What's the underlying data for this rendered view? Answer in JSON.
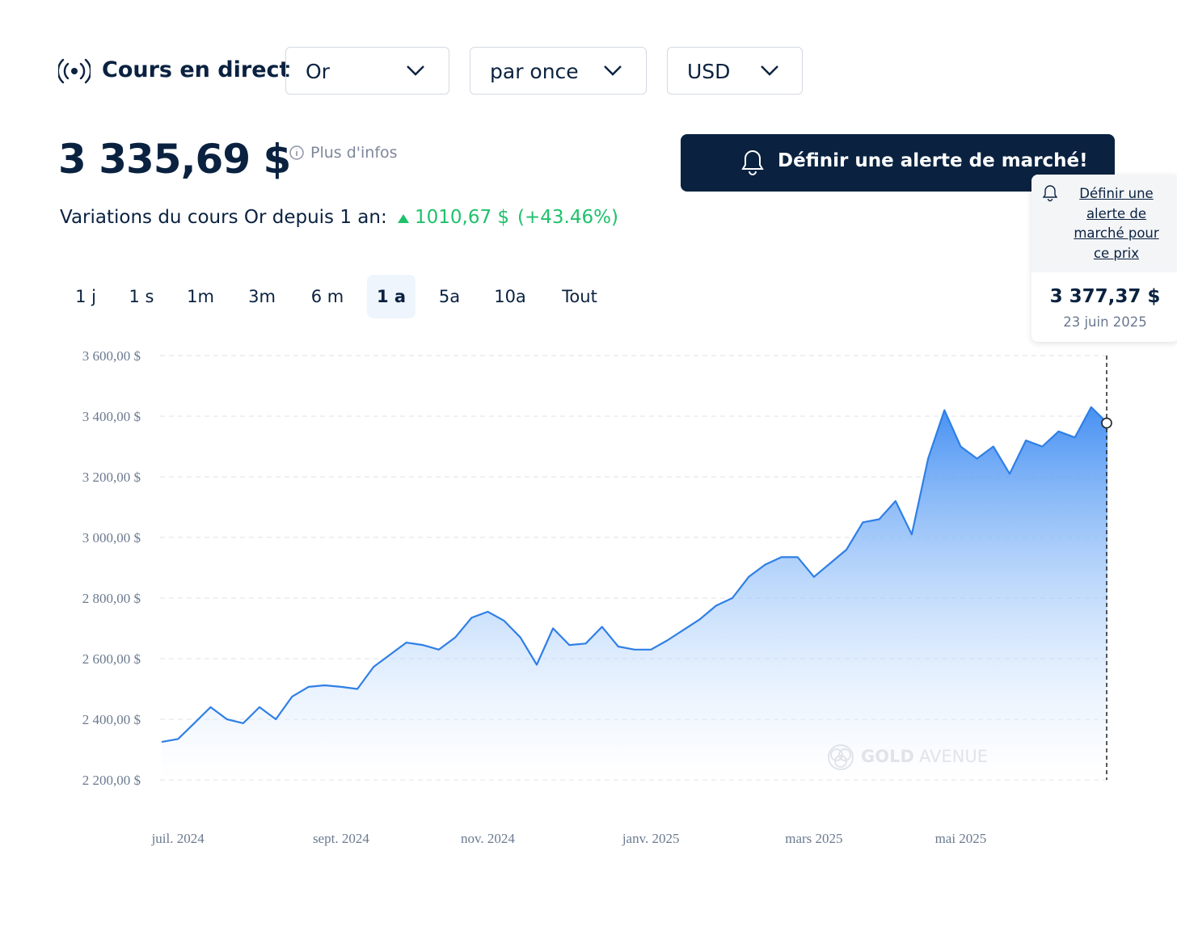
{
  "header": {
    "title": "Cours en direct",
    "dropdowns": [
      "Or",
      "par once",
      "USD"
    ]
  },
  "price": {
    "value": "3 335,69 $",
    "info": "Plus d'infos"
  },
  "alert_button": "Définir une alerte de marché!",
  "variation": {
    "label": "Variations du cours Or depuis 1 an:",
    "change": "1010,67 $",
    "percent": "(+43.46%)"
  },
  "tabs": [
    "1 j",
    "1 s",
    "1m",
    "3m",
    "6 m",
    "1 a",
    "5a",
    "10a",
    "Tout"
  ],
  "tooltip": {
    "link": "Définir une alerte de marché pour ce prix",
    "price": "3 377,37 $",
    "date": "23 juin 2025"
  },
  "watermark": [
    "GOLD",
    "AVENUE"
  ],
  "chart_data": {
    "type": "area",
    "categories": [
      null,
      "juil. 2024",
      null,
      null,
      null,
      null,
      null,
      null,
      null,
      null,
      null,
      "sept. 2024",
      null,
      null,
      null,
      null,
      null,
      null,
      null,
      null,
      "nov. 2024",
      null,
      null,
      null,
      null,
      null,
      null,
      null,
      null,
      null,
      "janv. 2025",
      null,
      null,
      null,
      null,
      null,
      null,
      null,
      null,
      null,
      "mars 2025",
      null,
      null,
      null,
      null,
      null,
      null,
      null,
      null,
      "mai 2025",
      null,
      null,
      null,
      null,
      null,
      null,
      null,
      null,
      null
    ],
    "values": [
      2325,
      2335,
      2387,
      2440,
      2400,
      2387,
      2440,
      2400,
      2475,
      2507,
      2512,
      2507,
      2500,
      2573,
      2613,
      2653,
      2645,
      2630,
      2670,
      2735,
      2755,
      2725,
      2670,
      2580,
      2700,
      2645,
      2650,
      2705,
      2640,
      2630,
      2630,
      2660,
      2695,
      2730,
      2775,
      2800,
      2870,
      2910,
      2935,
      2935,
      2870,
      2915,
      2960,
      3050,
      3060,
      3120,
      3010,
      3260,
      3420,
      3300,
      3260,
      3300,
      3210,
      3320,
      3300,
      3350,
      3330,
      3430,
      3377.37
    ],
    "color": "#2f7fe6",
    "ylim": [
      2200,
      3600
    ],
    "yticks": [
      {
        "value": 2200,
        "label": "2 200,00 $"
      },
      {
        "value": 2400,
        "label": "2 400,00 $"
      },
      {
        "value": 2600,
        "label": "2 600,00 $"
      },
      {
        "value": 2800,
        "label": "2 800,00 $"
      },
      {
        "value": 3000,
        "label": "3 000,00 $"
      },
      {
        "value": 3200,
        "label": "3 200,00 $"
      },
      {
        "value": 3400,
        "label": "3 400,00 $"
      },
      {
        "value": 3600,
        "label": "3 600,00 $"
      }
    ],
    "grid": true
  }
}
